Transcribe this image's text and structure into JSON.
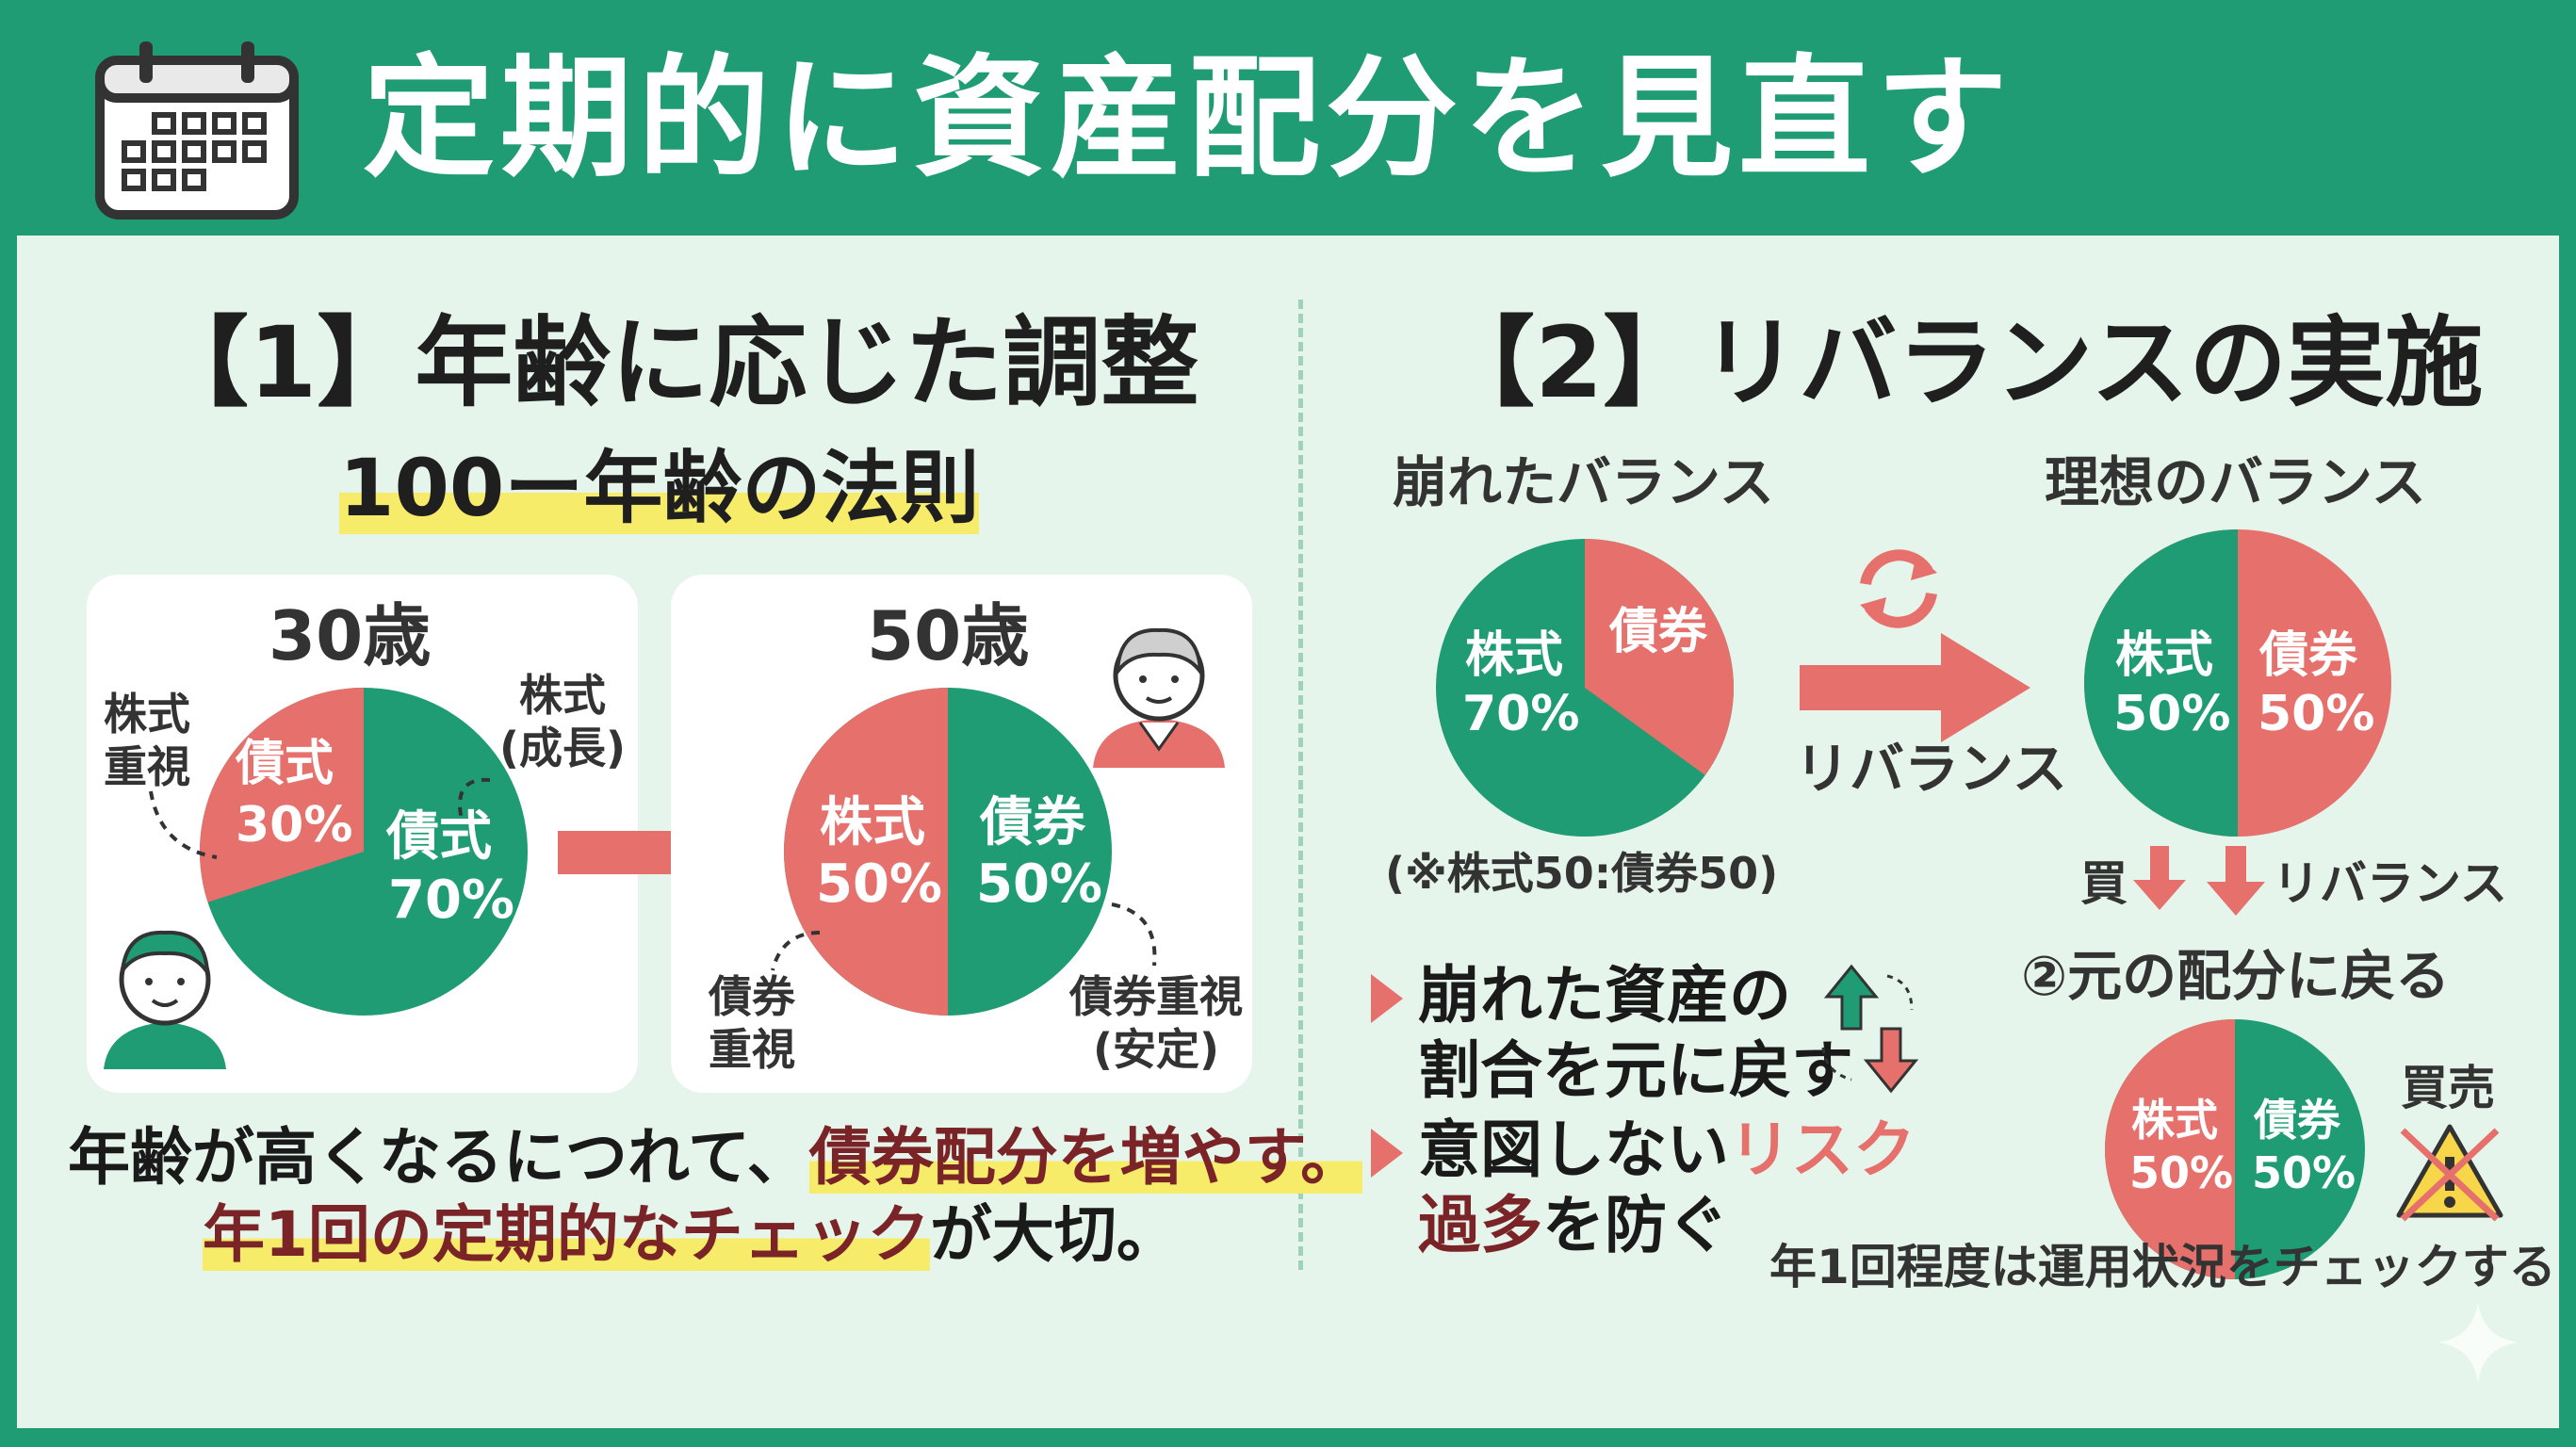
{
  "header": {
    "title": "定期的に資産配分を見直す",
    "icon": "calendar-icon"
  },
  "colors": {
    "green": "#1f9c74",
    "red": "#e5706c",
    "highlight": "#f7ec6a",
    "background": "#e6f5ec"
  },
  "left": {
    "title": "【1】年齢に応じた調整",
    "subtitle": "100ー年齢の法則",
    "card30": {
      "age": "30歳",
      "bond_label": "債式",
      "bond_value": "30%",
      "stock_label": "債式",
      "stock_value": "70%",
      "ann_left": "株式\n重視",
      "ann_right": "株式\n(成長)"
    },
    "card50": {
      "age": "50歳",
      "stock_label": "株式",
      "stock_value": "50%",
      "bond_label": "債券",
      "bond_value": "50%",
      "ann_left": "債券\n重視",
      "ann_right": "債券重視\n(安定)"
    },
    "bottom_line1_a": "年齢が高くなるにつれて、",
    "bottom_line1_b": "債券配分を増やす。",
    "bottom_line2_a": "年1回の定期的なチェック",
    "bottom_line2_b": "が大切。"
  },
  "right": {
    "title": "【2】リバランスの実施",
    "broken": {
      "label": "崩れたバランス",
      "stock_label": "株式",
      "stock_value": "70%",
      "bond_label": "債券",
      "note": "(※株式50:債券50)"
    },
    "arrow_label": "リバランス",
    "ideal": {
      "label": "理想のバランス",
      "stock_label": "株式",
      "stock_value": "50%",
      "bond_label": "債券",
      "bond_value": "50%"
    },
    "buy_label": "買",
    "rebalance_label2": "リバランス",
    "return_label": "②元の配分に戻る",
    "small_pie": {
      "stock_label": "株式",
      "stock_value": "50%",
      "bond_label": "債券",
      "bond_value": "50%"
    },
    "buysell_label": "買売",
    "bullets": [
      {
        "line1": "崩れた資産の",
        "line2": "割合を元に戻す"
      },
      {
        "line1a": "意図しない",
        "line1b": "リスク",
        "line2a": "過多",
        "line2b": "を防ぐ"
      }
    ],
    "footer": "年1回程度は運用状況をチェックする"
  }
}
